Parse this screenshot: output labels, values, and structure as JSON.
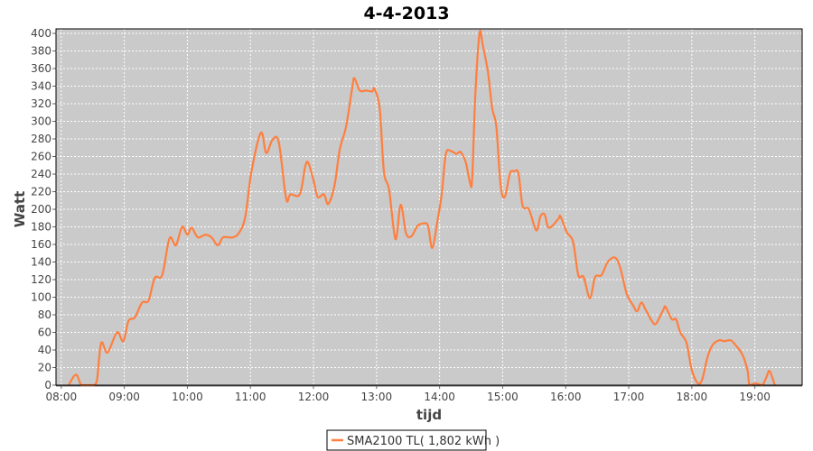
{
  "chart_data": {
    "type": "line",
    "title": "4-4-2013",
    "xlabel": "tijd",
    "ylabel": "Watt",
    "xlim": [
      "07:55",
      "19:45"
    ],
    "ylim": [
      0,
      400
    ],
    "x_ticks": [
      "08:00",
      "09:00",
      "10:00",
      "11:00",
      "12:00",
      "13:00",
      "14:00",
      "15:00",
      "16:00",
      "17:00",
      "18:00",
      "19:00"
    ],
    "y_ticks": [
      0,
      20,
      40,
      60,
      80,
      100,
      120,
      140,
      160,
      180,
      200,
      220,
      240,
      260,
      280,
      300,
      320,
      340,
      360,
      380,
      400
    ],
    "grid": true,
    "legend_placement": "bottom",
    "background_color": "#cacaca",
    "series": [
      {
        "name": "SMA2100 TL( 1,802 kWh )",
        "color": "#ff7f3f",
        "x": [
          "08:07",
          "08:14",
          "08:19",
          "08:24",
          "08:31",
          "08:34",
          "08:38",
          "08:44",
          "08:53",
          "08:59",
          "09:04",
          "09:10",
          "09:17",
          "09:23",
          "09:29",
          "09:36",
          "09:43",
          "09:49",
          "09:55",
          "10:00",
          "10:04",
          "10:10",
          "10:17",
          "10:23",
          "10:29",
          "10:34",
          "10:43",
          "10:49",
          "10:55",
          "11:01",
          "11:10",
          "11:15",
          "11:21",
          "11:27",
          "11:34",
          "11:38",
          "11:47",
          "11:52",
          "11:55",
          "12:00",
          "12:04",
          "12:10",
          "12:14",
          "12:20",
          "12:25",
          "12:31",
          "12:37",
          "12:39",
          "12:44",
          "12:50",
          "12:56",
          "12:58",
          "13:03",
          "13:07",
          "13:12",
          "13:18",
          "13:23",
          "13:28",
          "13:33",
          "13:39",
          "13:45",
          "13:49",
          "13:53",
          "13:58",
          "14:02",
          "14:06",
          "14:11",
          "14:16",
          "14:20",
          "14:25",
          "14:29",
          "14:31",
          "14:34",
          "14:38",
          "14:41",
          "14:46",
          "14:50",
          "14:54",
          "14:58",
          "15:02",
          "15:07",
          "15:11",
          "15:15",
          "15:19",
          "15:25",
          "15:32",
          "15:36",
          "15:40",
          "15:44",
          "15:53",
          "15:55",
          "16:01",
          "16:07",
          "16:12",
          "16:17",
          "16:23",
          "16:28",
          "16:34",
          "16:40",
          "16:47",
          "16:52",
          "16:58",
          "17:04",
          "17:08",
          "17:12",
          "17:16",
          "17:22",
          "17:26",
          "17:33",
          "17:35",
          "17:41",
          "17:45",
          "17:49",
          "17:55",
          "18:00",
          "18:06",
          "18:10",
          "18:15",
          "18:20",
          "18:26",
          "18:31",
          "18:37",
          "18:42",
          "18:48",
          "18:53",
          "18:55",
          "19:01",
          "19:07",
          "19:11",
          "19:14",
          "19:19"
        ],
        "values": [
          0,
          12,
          0,
          0,
          0,
          6,
          48,
          37,
          60,
          50,
          73,
          77,
          94,
          96,
          122,
          125,
          167,
          159,
          180,
          171,
          179,
          168,
          171,
          168,
          159,
          168,
          168,
          173,
          191,
          243,
          287,
          264,
          279,
          276,
          212,
          217,
          217,
          248,
          253,
          233,
          214,
          217,
          206,
          227,
          268,
          294,
          339,
          349,
          335,
          335,
          334,
          337,
          315,
          243,
          222,
          166,
          205,
          173,
          169,
          181,
          184,
          181,
          156,
          187,
          217,
          263,
          266,
          263,
          265,
          253,
          230,
          235,
          330,
          400,
          387,
          356,
          315,
          294,
          228,
          214,
          241,
          243,
          241,
          204,
          200,
          176,
          192,
          194,
          179,
          189,
          192,
          174,
          163,
          125,
          123,
          99,
          123,
          125,
          140,
          145,
          133,
          104,
          91,
          84,
          94,
          86,
          73,
          70,
          86,
          89,
          75,
          75,
          60,
          48,
          17,
          2,
          7,
          32,
          46,
          51,
          50,
          51,
          45,
          35,
          17,
          0,
          2,
          0,
          9,
          16,
          0
        ]
      }
    ]
  }
}
